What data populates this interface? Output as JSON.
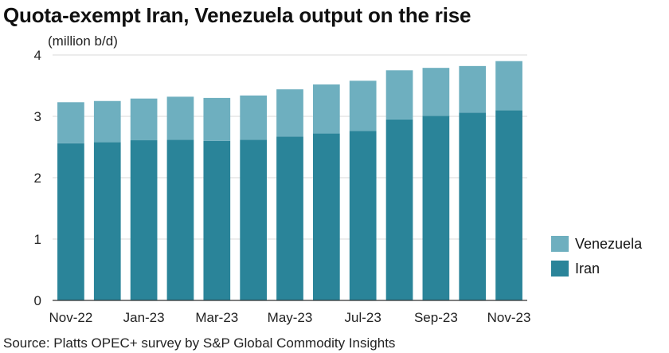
{
  "title": "Quota-exempt Iran, Venezuela output on the rise",
  "source": "Source: Platts OPEC+ survey by S&P Global Commodity Insights",
  "colors": {
    "iran": "#2a8499",
    "venezuela": "#6eafbf",
    "grid": "#d9d9d9",
    "axis": "#333333"
  },
  "chart_data": {
    "type": "bar",
    "stacked": true,
    "ylabel": "(million b/d)",
    "xlabel": "",
    "ylim": [
      0,
      4
    ],
    "yticks": [
      0,
      1,
      2,
      3,
      4
    ],
    "grid": true,
    "legend_position": "right",
    "categories": [
      "Nov-22",
      "Dec-22",
      "Jan-23",
      "Feb-23",
      "Mar-23",
      "Apr-23",
      "May-23",
      "Jun-23",
      "Jul-23",
      "Aug-23",
      "Sep-23",
      "Oct-23",
      "Nov-23"
    ],
    "xtick_labels": [
      "Nov-22",
      "Jan-23",
      "Mar-23",
      "May-23",
      "Jul-23",
      "Sep-23",
      "Nov-23"
    ],
    "series": [
      {
        "name": "Iran",
        "values": [
          2.56,
          2.58,
          2.61,
          2.62,
          2.6,
          2.62,
          2.67,
          2.72,
          2.76,
          2.95,
          3.01,
          3.06,
          3.1
        ]
      },
      {
        "name": "Venezuela",
        "values": [
          0.67,
          0.67,
          0.68,
          0.7,
          0.7,
          0.72,
          0.77,
          0.8,
          0.82,
          0.8,
          0.78,
          0.76,
          0.8
        ]
      }
    ]
  }
}
